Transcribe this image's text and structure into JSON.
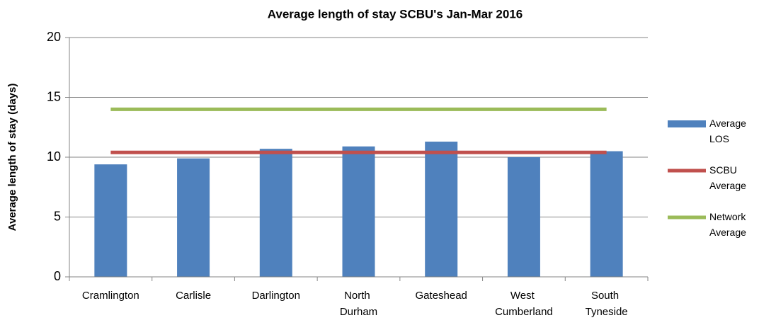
{
  "chart_data": {
    "type": "bar",
    "title": "Average length of stay SCBU's Jan-Mar 2016",
    "y_label": "Average length of stay (days)",
    "categories": [
      "Cramlington",
      "Carlisle",
      "Darlington",
      "North Durham",
      "Gateshead",
      "West Cumberland",
      "South Tyneside"
    ],
    "series": [
      {
        "name": "Average LOS",
        "type": "bar",
        "color": "#4f81bd",
        "values": [
          9.4,
          9.9,
          10.7,
          10.9,
          11.3,
          10.0,
          10.5
        ]
      },
      {
        "name": "SCBU Average",
        "type": "line",
        "color": "#c0504d",
        "values": [
          10.4,
          10.4,
          10.4,
          10.4,
          10.4,
          10.4,
          10.4
        ]
      },
      {
        "name": "Network Average",
        "type": "line",
        "color": "#9bbb59",
        "values": [
          14.0,
          14.0,
          14.0,
          14.0,
          14.0,
          14.0,
          14.0
        ]
      }
    ],
    "ylim": [
      0,
      20
    ],
    "yticks": [
      0,
      5,
      10,
      15,
      20
    ],
    "grid": true,
    "legend": "right"
  }
}
